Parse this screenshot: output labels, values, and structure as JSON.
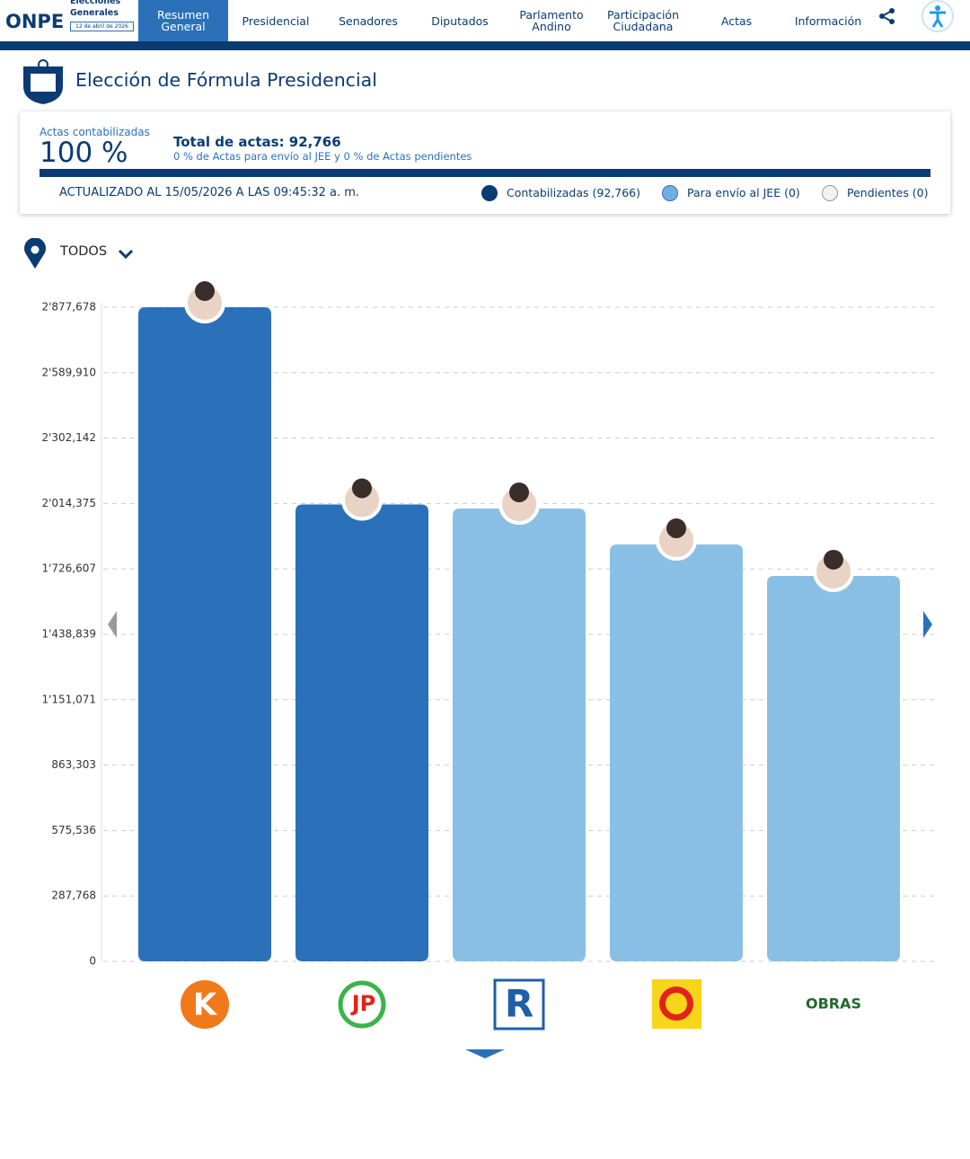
{
  "header": {
    "brand": "ONPE",
    "event_line1": "Elecciones",
    "event_line2": "Generales",
    "event_date": "12 de abril de 2026"
  },
  "nav": [
    "Resumen General",
    "Presidencial",
    "Senadores",
    "Diputados",
    "Parlamento Andino",
    "Participación Ciudadana",
    "Actas",
    "Información"
  ],
  "page_title": "Elección de Fórmula Presidencial",
  "summary": {
    "counted_label": "Actas contabilizadas",
    "counted_percent": "100 %",
    "total": "Total de actas: 92,766",
    "pending_note": "0 % de Actas para envío al JEE y 0 % de Actas pendientes",
    "updated": "ACTUALIZADO AL 15/05/2026 A LAS 09:45:32 a. m.",
    "legend": [
      "Contabilizadas (92,766)",
      "Para envío al JEE (0)",
      "Pendientes (0)"
    ]
  },
  "filter": "TODOS",
  "chart_data": {
    "type": "bar",
    "categories": [
      "K",
      "JP",
      "R",
      null,
      "OBRAS"
    ],
    "values": [
      2877678,
      2010000,
      1992000,
      1834000,
      1696000
    ],
    "colors": [
      "#2b71ba",
      "#2b71ba",
      "#8abfe5",
      "#8abfe5",
      "#8abfe5"
    ],
    "ylim": [
      0,
      2877678
    ],
    "yticks": [
      0,
      {
        "value": 287768,
        "label": "287,768"
      },
      {
        "value": 575536,
        "label": "575,536"
      },
      {
        "value": 863303,
        "label": "863,303"
      },
      {
        "value": 1151071,
        "label": "1'151,071"
      },
      {
        "value": 1438839,
        "label": "1'438,839"
      },
      {
        "value": 1726607,
        "label": "1'726,607"
      },
      {
        "value": 2014375,
        "label": "2'014,375"
      },
      {
        "value": 2302142,
        "label": "2'302,142"
      },
      {
        "value": 2589910,
        "label": "2'589,910"
      },
      {
        "value": 2877678,
        "label": "2'877,678"
      }
    ],
    "grid": true
  }
}
